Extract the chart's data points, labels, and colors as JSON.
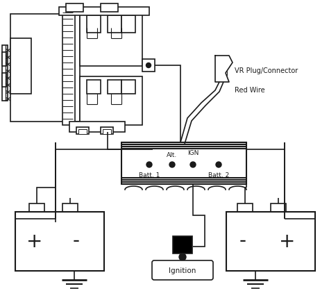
{
  "bg_color": "#ffffff",
  "line_color": "#1a1a1a",
  "labels": {
    "vr_plug": "VR Plug/Connector",
    "red_wire": "Red Wire",
    "batt1": "Batt. 1",
    "batt2": "Batt. 2",
    "alt": "Alt.",
    "ign": "IGN",
    "ignition": "Ignition",
    "plus": "+",
    "minus": "-"
  },
  "figsize": [
    4.74,
    4.19
  ],
  "dpi": 100,
  "xlim": [
    0,
    474
  ],
  "ylim": [
    0,
    419
  ]
}
